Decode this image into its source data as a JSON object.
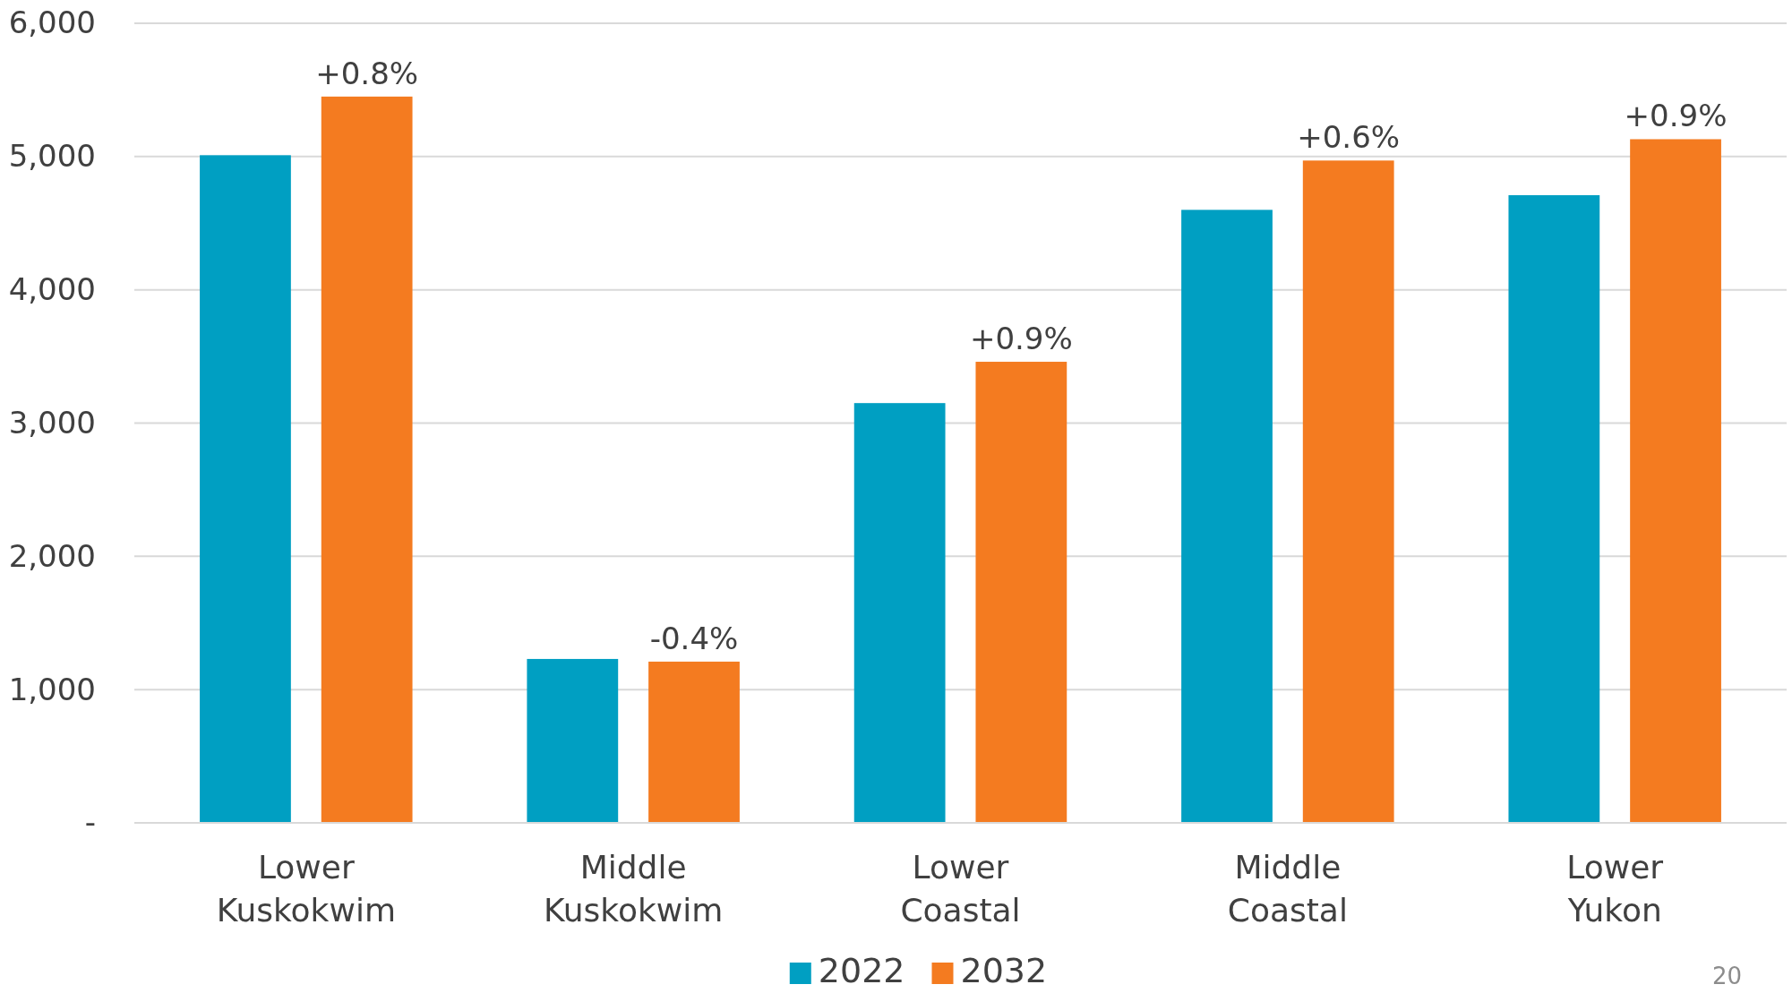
{
  "chart_data": {
    "type": "bar",
    "categories": [
      "Lower Kuskokwim",
      "Middle Kuskokwim",
      "Lower Coastal",
      "Middle Coastal",
      "Lower Yukon"
    ],
    "series": [
      {
        "name": "2022",
        "color": "#009fc2",
        "values": [
          5010,
          1230,
          3150,
          4600,
          4710
        ]
      },
      {
        "name": "2032",
        "color": "#f47b20",
        "values": [
          5450,
          1210,
          3460,
          4970,
          5130
        ]
      }
    ],
    "ylim": [
      0,
      6000
    ],
    "yticks": [
      {
        "value": 0,
        "label": "-"
      },
      {
        "value": 1000,
        "label": "1,000"
      },
      {
        "value": 2000,
        "label": "2,000"
      },
      {
        "value": 3000,
        "label": "3,000"
      },
      {
        "value": 4000,
        "label": "4,000"
      },
      {
        "value": 5000,
        "label": "5,000"
      },
      {
        "value": 6000,
        "label": "6,000"
      }
    ],
    "grid": "y",
    "legend": "bottom",
    "annotations": [
      "+0.8%",
      "-0.4%",
      "+0.9%",
      "+0.6%",
      "+0.9%",
      "20"
    ]
  }
}
